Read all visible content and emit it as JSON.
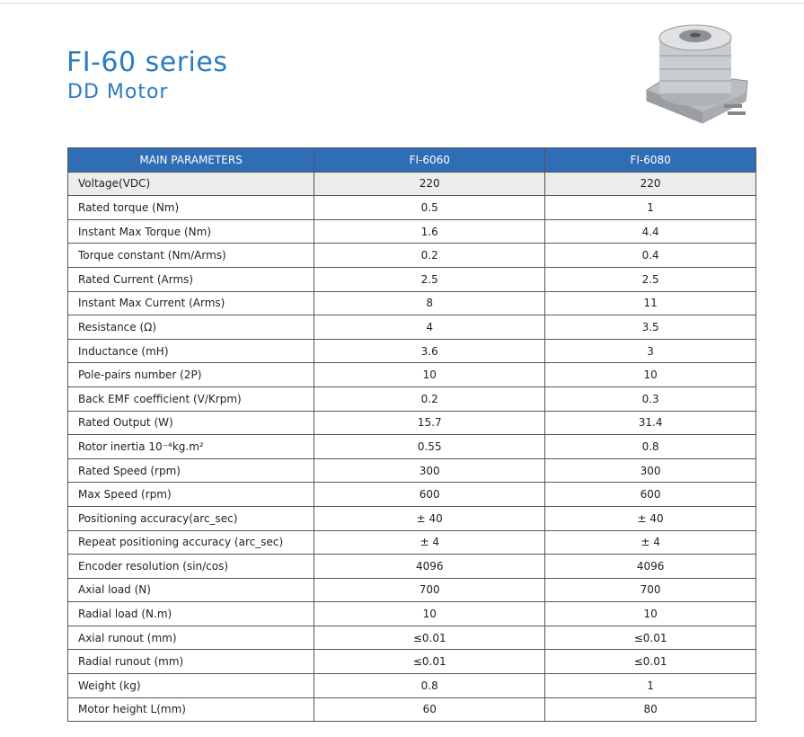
{
  "header": {
    "title": "FI-60 series",
    "subtitle": "DD Motor"
  },
  "table": {
    "columns": [
      "MAIN PARAMETERS",
      "FI-6060",
      "FI-6080"
    ],
    "rows": [
      [
        "Voltage(VDC)",
        "220",
        "220"
      ],
      [
        "Rated torque (Nm)",
        "0.5",
        "1"
      ],
      [
        "Instant Max Torque (Nm)",
        "1.6",
        "4.4"
      ],
      [
        "Torque constant (Nm/Arms)",
        "0.2",
        "0.4"
      ],
      [
        "Rated Current (Arms)",
        "2.5",
        "2.5"
      ],
      [
        "Instant Max Current (Arms)",
        "8",
        "11"
      ],
      [
        "Resistance (Ω)",
        "4",
        "3.5"
      ],
      [
        "Inductance (mH)",
        "3.6",
        "3"
      ],
      [
        "Pole-pairs number (2P)",
        "10",
        "10"
      ],
      [
        "Back EMF coefficient (V/Krpm)",
        "0.2",
        "0.3"
      ],
      [
        "Rated Output (W)",
        "15.7",
        "31.4"
      ],
      [
        "Rotor inertia 10⁻⁴kg.m²",
        "0.55",
        "0.8"
      ],
      [
        "Rated Speed (rpm)",
        "300",
        "300"
      ],
      [
        "Max Speed (rpm)",
        "600",
        "600"
      ],
      [
        "Positioning accuracy(arc_sec)",
        "± 40",
        "± 40"
      ],
      [
        "Repeat positioning accuracy (arc_sec)",
        "± 4",
        "± 4"
      ],
      [
        "Encoder resolution (sin/cos)",
        "4096",
        "4096"
      ],
      [
        "Axial load (N)",
        "700",
        "700"
      ],
      [
        "Radial load (N.m)",
        "10",
        "10"
      ],
      [
        "Axial runout (mm)",
        "≤0.01",
        "≤0.01"
      ],
      [
        "Radial runout (mm)",
        "≤0.01",
        "≤0.01"
      ],
      [
        "Weight (kg)",
        "0.8",
        "1"
      ],
      [
        "Motor height L(mm)",
        "60",
        "80"
      ]
    ]
  }
}
